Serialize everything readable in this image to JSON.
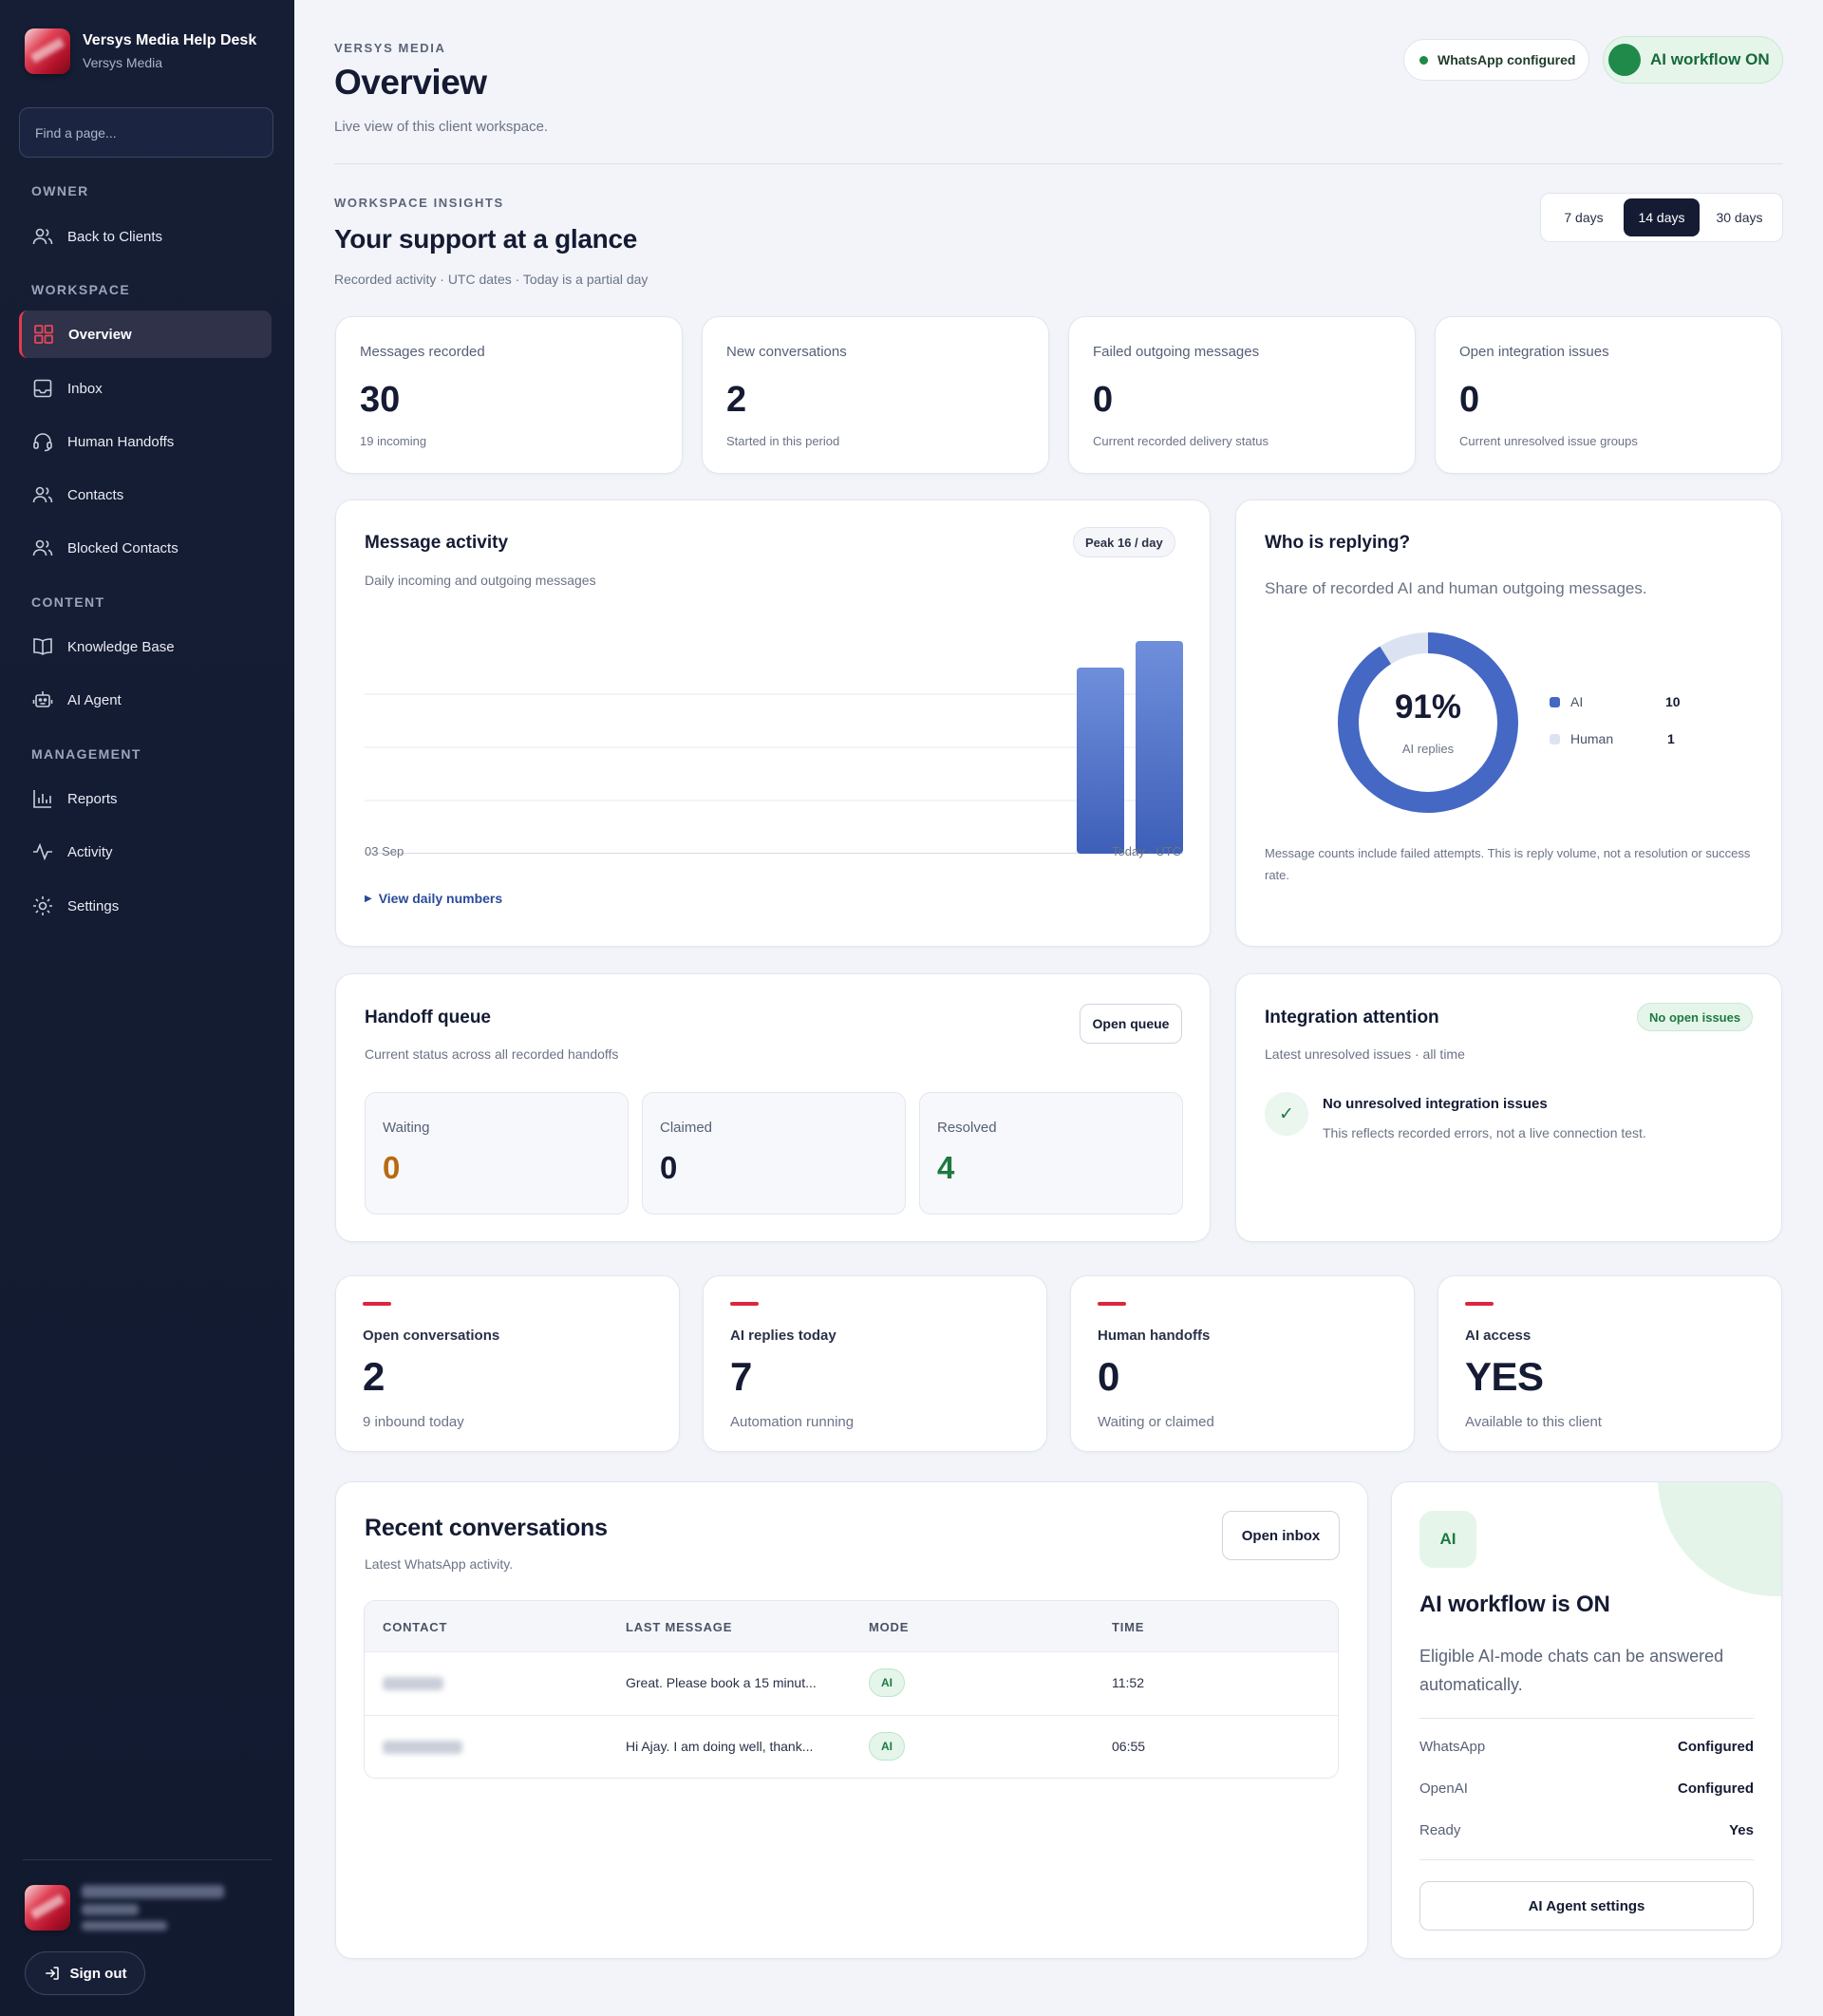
{
  "brand": {
    "title": "Versys Media Help Desk",
    "subtitle": "Versys Media"
  },
  "search": {
    "placeholder": "Find a page..."
  },
  "sidebar": {
    "sections": [
      "OWNER",
      "WORKSPACE",
      "CONTENT",
      "MANAGEMENT"
    ],
    "items": [
      {
        "label": "Back to Clients",
        "icon": "users-icon"
      },
      {
        "label": "Overview",
        "icon": "grid-icon",
        "active": true
      },
      {
        "label": "Inbox",
        "icon": "inbox-icon"
      },
      {
        "label": "Human Handoffs",
        "icon": "headset-icon"
      },
      {
        "label": "Contacts",
        "icon": "users-icon"
      },
      {
        "label": "Blocked Contacts",
        "icon": "users-icon"
      },
      {
        "label": "Knowledge Base",
        "icon": "book-icon"
      },
      {
        "label": "AI Agent",
        "icon": "robot-icon"
      },
      {
        "label": "Reports",
        "icon": "bar-chart-icon"
      },
      {
        "label": "Activity",
        "icon": "pulse-icon"
      },
      {
        "label": "Settings",
        "icon": "gear-icon"
      }
    ],
    "sign_out": "Sign out"
  },
  "header": {
    "eyebrow": "VERSYS MEDIA",
    "title": "Overview",
    "subtitle": "Live view of this client workspace.",
    "whatsapp_pill": "WhatsApp configured",
    "ai_pill": "AI workflow ON"
  },
  "insights": {
    "eyebrow": "WORKSPACE INSIGHTS",
    "title": "Your support at a glance",
    "subtitle": "Recorded activity · UTC dates · Today is a partial day",
    "ranges": [
      "7 days",
      "14 days",
      "30 days"
    ],
    "selected_range": "14 days"
  },
  "stats": [
    {
      "label": "Messages recorded",
      "value": "30",
      "note": "19 incoming"
    },
    {
      "label": "New conversations",
      "value": "2",
      "note": "Started in this period"
    },
    {
      "label": "Failed outgoing messages",
      "value": "0",
      "note": "Current recorded delivery status"
    },
    {
      "label": "Open integration issues",
      "value": "0",
      "note": "Current unresolved issue groups"
    }
  ],
  "activity": {
    "title": "Message activity",
    "subtitle": "Daily incoming and outgoing messages",
    "badge": "Peak 16 / day",
    "x_start": "03 Sep",
    "x_end": "Today · UTC",
    "link": "View daily numbers"
  },
  "chart_data": {
    "type": "bar",
    "title": "Message activity",
    "x_start_label": "03 Sep",
    "x_end_label": "Today · UTC",
    "values_last_two_days": [
      14,
      16
    ],
    "ylim": [
      0,
      16
    ],
    "peak": 16,
    "grid": true,
    "color": "#4468c4"
  },
  "replying": {
    "title": "Who is replying?",
    "subtitle": "Share of recorded AI and human outgoing messages.",
    "percent": "91%",
    "percent_label": "AI replies",
    "legend": [
      {
        "name": "AI",
        "value": "10",
        "color": "#4468c4"
      },
      {
        "name": "Human",
        "value": "1",
        "color": "#dbe3f3"
      }
    ],
    "note": "Message counts include failed attempts. This is reply volume, not a resolution or success rate."
  },
  "handoff": {
    "title": "Handoff queue",
    "subtitle": "Current status across all recorded handoffs",
    "button": "Open queue",
    "boxes": [
      {
        "label": "Waiting",
        "value": "0",
        "color": "#b86a10"
      },
      {
        "label": "Claimed",
        "value": "0",
        "color": "#141b33"
      },
      {
        "label": "Resolved",
        "value": "4",
        "color": "#1d7a3f"
      }
    ]
  },
  "integration": {
    "title": "Integration attention",
    "subtitle": "Latest unresolved issues · all time",
    "badge": "No open issues",
    "item_title": "No unresolved integration issues",
    "item_note": "This reflects recorded errors, not a live connection test."
  },
  "kpis": [
    {
      "label": "Open conversations",
      "value": "2",
      "note": "9 inbound today"
    },
    {
      "label": "AI replies today",
      "value": "7",
      "note": "Automation running"
    },
    {
      "label": "Human handoffs",
      "value": "0",
      "note": "Waiting or claimed"
    },
    {
      "label": "AI access",
      "value": "YES",
      "note": "Available to this client"
    }
  ],
  "recent": {
    "title": "Recent conversations",
    "subtitle": "Latest WhatsApp activity.",
    "button": "Open inbox",
    "columns": [
      "CONTACT",
      "LAST MESSAGE",
      "MODE",
      "TIME"
    ],
    "rows": [
      {
        "last_message": "Great. Please book a 15 minut...",
        "mode": "AI",
        "time": "11:52"
      },
      {
        "last_message": "Hi Ajay. I am doing well, thank...",
        "mode": "AI",
        "time": "06:55"
      }
    ]
  },
  "workflow": {
    "badge": "AI",
    "title": "AI workflow is ON",
    "desc": "Eligible AI-mode chats can be answered automatically.",
    "rows": [
      {
        "key": "WhatsApp",
        "value": "Configured"
      },
      {
        "key": "OpenAI",
        "value": "Configured"
      },
      {
        "key": "Ready",
        "value": "Yes"
      }
    ],
    "button": "AI Agent settings"
  },
  "colors": {
    "accent": "#e23b4e",
    "brand_blue": "#4468c4",
    "green": "#1d7a3f",
    "sidebar": "#151d33"
  }
}
